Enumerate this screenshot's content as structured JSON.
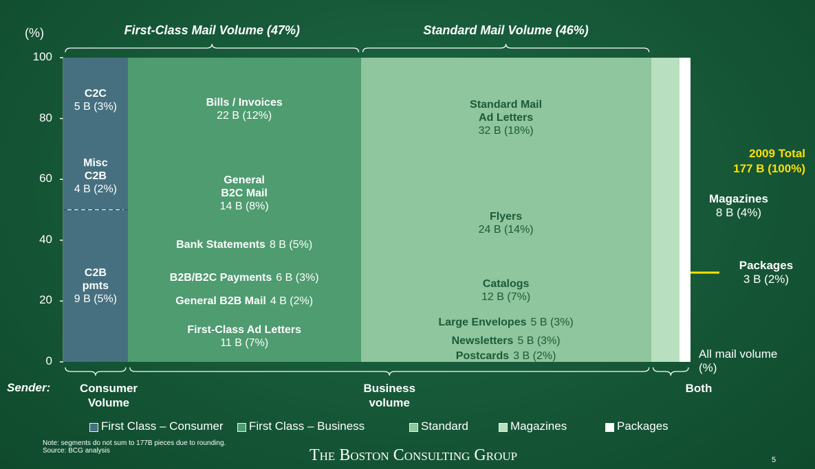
{
  "chart_data": {
    "type": "mekko",
    "ylabel": "(%)",
    "ylim": [
      0,
      100
    ],
    "yticks": [
      0,
      20,
      40,
      60,
      80,
      100
    ],
    "xlabel": "All mail volume (%)",
    "groups": [
      "First-Class Mail Volume (47%)",
      "Standard Mail Volume (46%)"
    ],
    "sender_title": "Sender:",
    "senders": [
      "Consumer Volume",
      "Business volume",
      "Both"
    ],
    "total": [
      "2009 Total",
      "177 B (100%)"
    ],
    "columns": [
      {
        "legend": "First Class – Consumer",
        "color": "#46707f",
        "segments": [
          {
            "name": "C2B\npmts",
            "value": 9,
            "value_label": "9 B (5%)"
          },
          {
            "name": "Misc\nC2B",
            "value": 4,
            "value_label": "4 B (2%)"
          },
          {
            "name": "C2C",
            "value": 5,
            "value_label": "5 B (3%)"
          }
        ]
      },
      {
        "legend": "First Class – Business",
        "color": "#4e9c70",
        "segments": [
          {
            "name": "First-Class Ad Letters",
            "value": 11,
            "value_label": "11 B (7%)"
          },
          {
            "name": "General B2B Mail",
            "value": 4,
            "value_label": "4 B (2%)"
          },
          {
            "name": "B2B/B2C Payments",
            "value": 6,
            "value_label": "6 B (3%)"
          },
          {
            "name": "Bank Statements",
            "value": 8,
            "value_label": "8 B (5%)"
          },
          {
            "name": "General\nB2C Mail",
            "value": 14,
            "value_label": "14 B (8%)"
          },
          {
            "name": "Bills / Invoices",
            "value": 22,
            "value_label": "22 B (12%)"
          }
        ]
      },
      {
        "legend": "Standard",
        "color": "#8fc69d",
        "segments": [
          {
            "name": "Postcards",
            "value": 3,
            "value_label": "3 B (2%)"
          },
          {
            "name": "Newsletters",
            "value": 5,
            "value_label": "5 B (3%)"
          },
          {
            "name": "Large Envelopes",
            "value": 5,
            "value_label": "5 B (3%)"
          },
          {
            "name": "Catalogs",
            "value": 12,
            "value_label": "12 B (7%)"
          },
          {
            "name": "Flyers",
            "value": 24,
            "value_label": "24 B (14%)"
          },
          {
            "name": "Standard Mail\nAd Letters",
            "value": 32,
            "value_label": "32 B (18%)"
          }
        ]
      },
      {
        "legend": "Magazines",
        "color": "#b8dfc0",
        "segments": [
          {
            "name": "Magazines",
            "value": 8,
            "value_label": "8 B (4%)"
          }
        ]
      },
      {
        "legend": "Packages",
        "color": "#ffffff",
        "segments": [
          {
            "name": "Packages",
            "value": 3,
            "value_label": "3 B (2%)"
          }
        ]
      }
    ],
    "note": "Note: segments do not sum to 177B pieces due to rounding.",
    "source": "Source: BCG analysis",
    "logo": "The Boston Consulting Group",
    "page_number": "5"
  }
}
